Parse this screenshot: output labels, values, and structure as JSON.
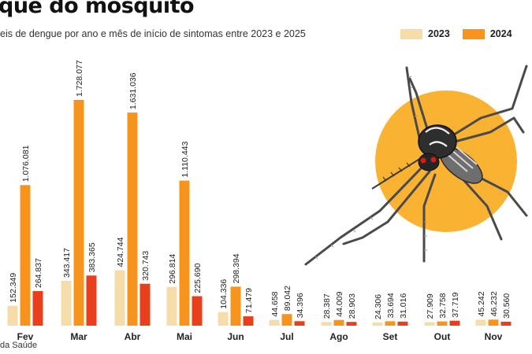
{
  "header": {
    "title": "que do mosquito",
    "subtitle": "eis de dengue por ano e mês de início de sintomas entre 2023 e 2025"
  },
  "footer": {
    "source": "da Saúde"
  },
  "colors": {
    "s2023": "#f5dca8",
    "s2024": "#f7941d",
    "s2025": "#e8401c",
    "mosquito_circle": "#f9b232"
  },
  "illustration": {
    "icon": "mosquito-icon"
  },
  "chart_data": {
    "type": "bar",
    "categories": [
      "Fev",
      "Mar",
      "Abr",
      "Mai",
      "Jun",
      "Jul",
      "Ago",
      "Set",
      "Out",
      "Nov"
    ],
    "series": [
      {
        "name": "2023",
        "values": [
          152349,
          343417,
          424744,
          296814,
          104336,
          44658,
          28387,
          24306,
          27909,
          45242
        ],
        "labels": [
          "152.349",
          "343.417",
          "424.744",
          "296.814",
          "104.336",
          "44.658",
          "28.387",
          "24.306",
          "27.909",
          "45.242"
        ]
      },
      {
        "name": "2024",
        "values": [
          1076081,
          1728077,
          1631036,
          1110443,
          298394,
          89042,
          44009,
          33694,
          32758,
          46232
        ],
        "labels": [
          "1.076.081",
          "1.728.077",
          "1.631.036",
          "1.110.443",
          "298.394",
          "89.042",
          "44.009",
          "33.694",
          "32.758",
          "46.232"
        ]
      },
      {
        "name": "",
        "values": [
          264837,
          383365,
          320743,
          225690,
          71479,
          34396,
          28903,
          31016,
          37719,
          30560
        ],
        "labels": [
          "264.837",
          "383.365",
          "320.743",
          "225.690",
          "71.479",
          "34.396",
          "28.903",
          "31.016",
          "37.719",
          "30.560"
        ]
      }
    ],
    "legend_position": "top-right",
    "grid": false
  }
}
